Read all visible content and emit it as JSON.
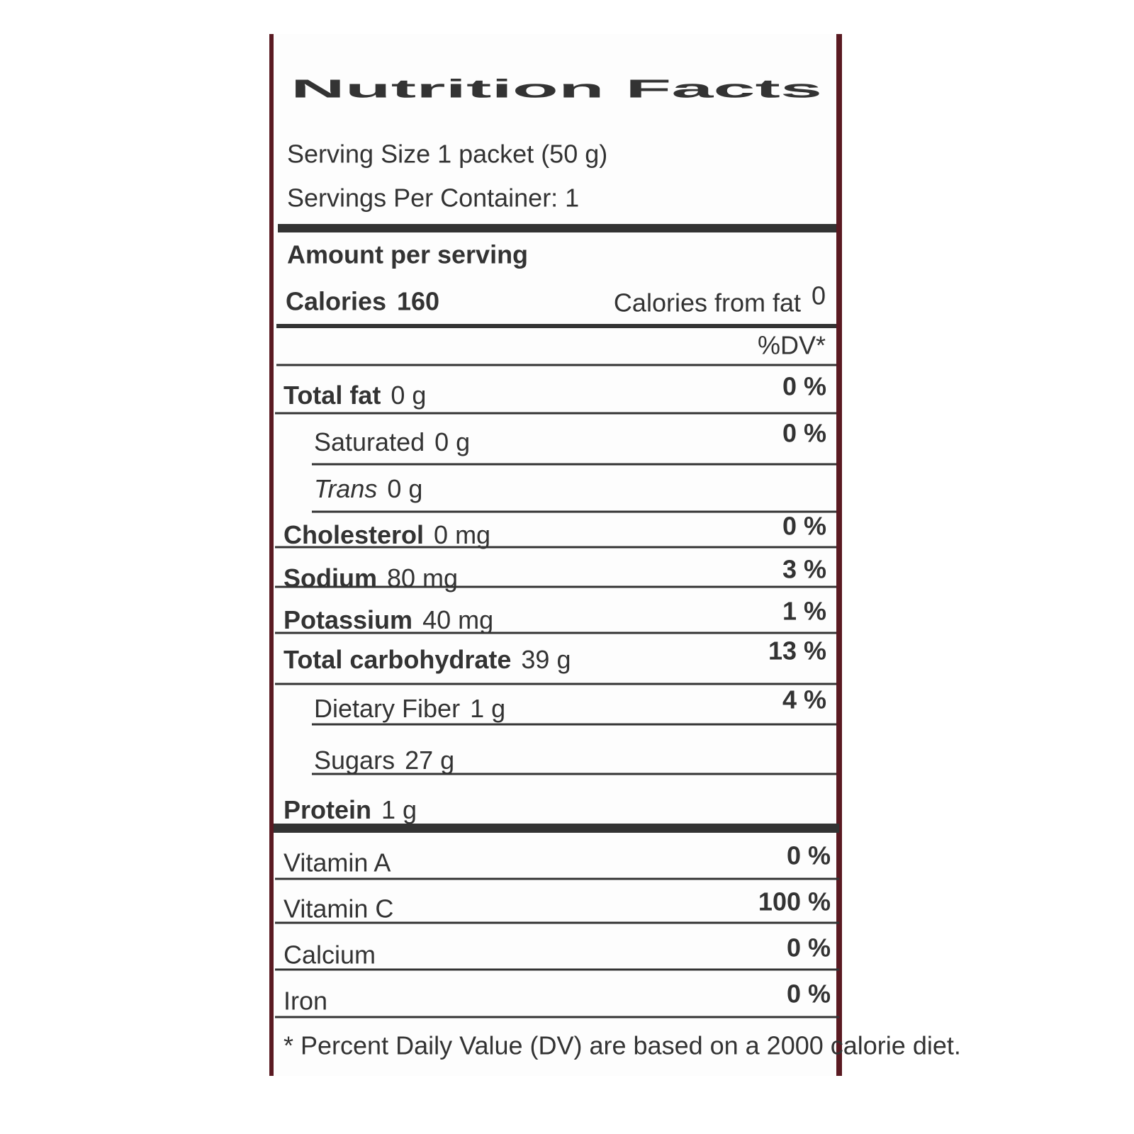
{
  "title": "Nutrition Facts",
  "serving_size": "Serving Size 1 packet (50 g)",
  "servings_per_container": "Servings Per Container: 1",
  "amount_per_serving": "Amount per serving",
  "calories": {
    "label": "Calories",
    "value": "160",
    "from_fat_label": "Calories from fat",
    "from_fat_value": "0"
  },
  "dv_header": "%DV*",
  "rows": [
    {
      "name": "Total fat",
      "amount": "0 g",
      "dv": "0 %"
    },
    {
      "name": "Saturated",
      "amount": "0 g",
      "dv": "0 %"
    },
    {
      "name": "Trans",
      "amount": "0 g"
    },
    {
      "name": "Cholesterol",
      "amount": "0 mg",
      "dv": "0 %"
    },
    {
      "name": "Sodium",
      "amount": "80 mg",
      "dv": "3 %"
    },
    {
      "name": "Potassium",
      "amount": "40 mg",
      "dv": "1 %"
    },
    {
      "name": "Total carbohydrate",
      "amount": "39 g",
      "dv": "13 %"
    },
    {
      "name": "Dietary Fiber",
      "amount": "1 g",
      "dv": "4 %"
    },
    {
      "name": "Sugars",
      "amount": "27 g"
    },
    {
      "name": "Protein",
      "amount": "1 g"
    }
  ],
  "vitamins": [
    {
      "name": "Vitamin A",
      "dv": "0 %"
    },
    {
      "name": "Vitamin C",
      "dv": "100 %"
    },
    {
      "name": "Calcium",
      "dv": "0 %"
    },
    {
      "name": "Iron",
      "dv": "0 %"
    }
  ],
  "footnote": "* Percent Daily Value (DV) are based on a 2000 calorie diet."
}
